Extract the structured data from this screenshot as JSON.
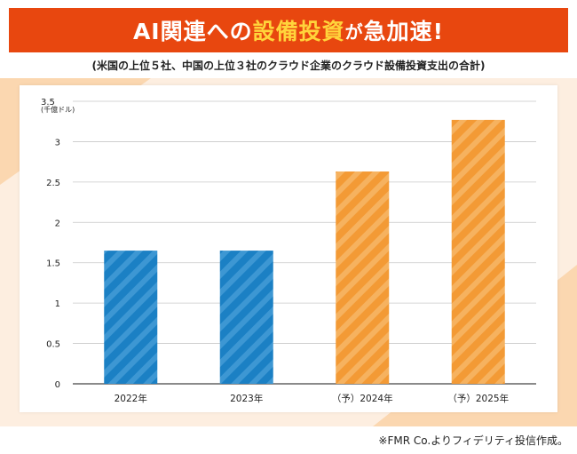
{
  "title": {
    "prefix": "AI関連への",
    "accent": "設備投資",
    "mid": "が",
    "suffix": "急加速!"
  },
  "subtitle": "(米国の上位５社、中国の上位３社のクラウド企業のクラウド設備投資支出の合計)",
  "footnote": "※FMR Co.よりフィデリティ投信作成。",
  "colors": {
    "banner": "#e8470f",
    "accent_text": "#ffd43b",
    "actual": "#1b80c4",
    "forecast": "#f39a35",
    "background_triangle": "#fbd7b0"
  },
  "chart_data": {
    "type": "bar",
    "categories": [
      "2022年",
      "（予）2024年",
      "2023年",
      "（予）2025年"
    ],
    "order": [
      "2022年",
      "2023年",
      "（予）2024年",
      "（予）2025年"
    ],
    "values": [
      1.65,
      1.65,
      2.63,
      3.27
    ],
    "bar_kind": [
      "actual",
      "actual",
      "forecast",
      "forecast"
    ],
    "ylim": [
      0,
      3.5
    ],
    "yticks": [
      "0",
      "0.5",
      "1",
      "1.5",
      "2",
      "2.5",
      "3",
      "3.5"
    ],
    "ytick_values": [
      0,
      0.5,
      1,
      1.5,
      2,
      2.5,
      3,
      3.5
    ],
    "yunit": "(千億ドル)",
    "grid": true
  }
}
